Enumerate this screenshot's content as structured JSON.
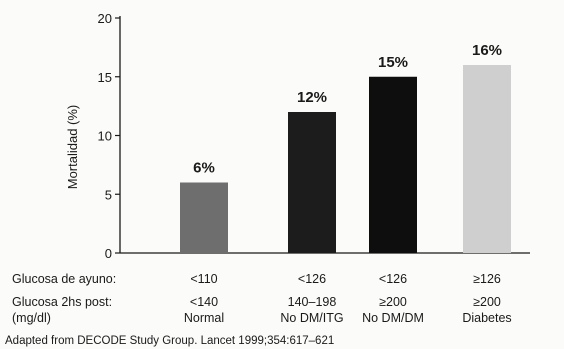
{
  "chart_data": {
    "type": "bar",
    "ylabel": "Mortalidad  (%)",
    "ylim": [
      0,
      20
    ],
    "yticks": [
      "0",
      "5",
      "10",
      "15",
      "20"
    ],
    "grid": false,
    "categories": [
      "<110 / <140 Normal",
      "<126 / 140–198 No DM/ITG",
      "<126 / ≥200 No DM/DM",
      "≥126 / ≥200 Diabetes"
    ],
    "values": [
      6,
      12,
      15,
      16
    ],
    "data_labels": [
      "6%",
      "12%",
      "15%",
      "16%"
    ],
    "bar_colors": [
      "#6e6e6e",
      "#1c1c1c",
      "#0e0e0e",
      "#cfcfcf"
    ]
  },
  "table": {
    "row1_label": "Glucosa de ayuno:",
    "row2_label": "Glucosa 2hs post:",
    "row2_unit": "(mg/dl)",
    "fasting": [
      "<110",
      "<126",
      "<126",
      "≥126"
    ],
    "post": [
      "<140",
      "140–198",
      "≥200",
      "≥200"
    ],
    "group": [
      "Normal",
      "No DM/ITG",
      "No DM/DM",
      "Diabetes"
    ]
  },
  "footnote": "Adapted from DECODE Study Group. Lancet 1999;354:617–621"
}
